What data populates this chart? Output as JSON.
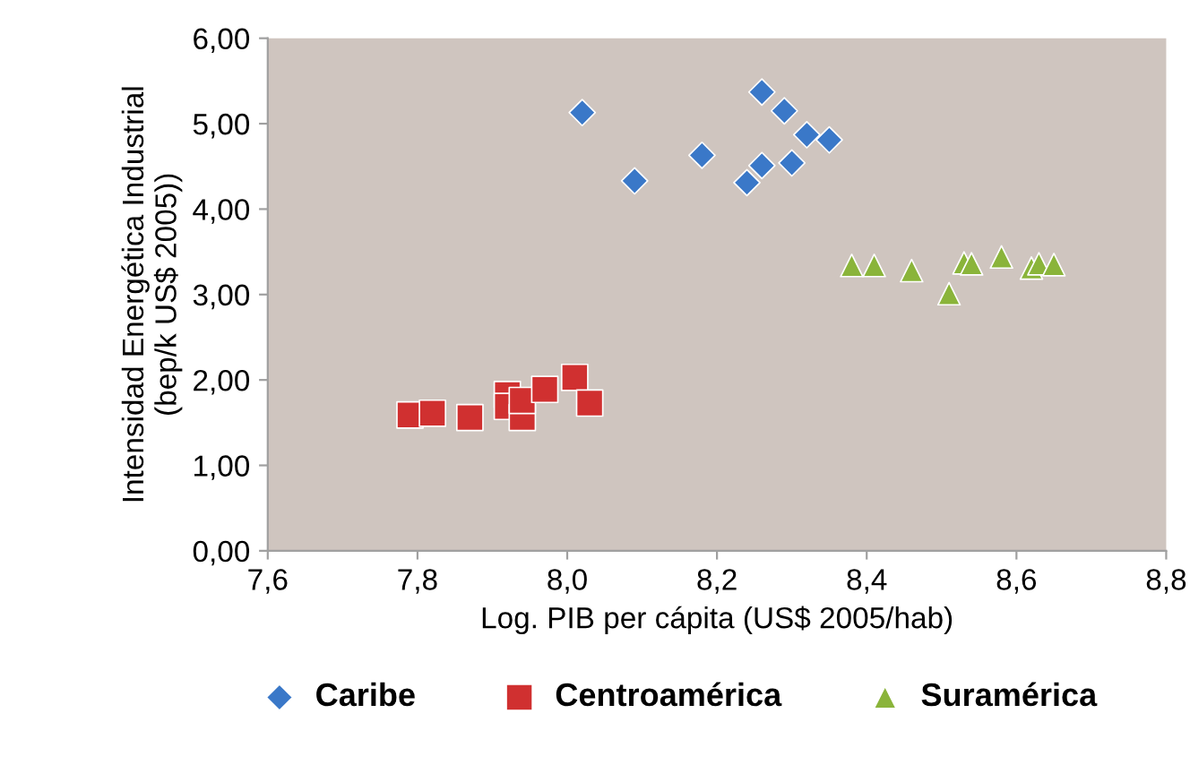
{
  "chart_data": {
    "type": "scatter",
    "xlabel": "Log. PIB per cápita (US$ 2005/hab)",
    "ylabel": "Intensidad Energética Industrial\n(bep/k US$ 2005))",
    "xlim": [
      7.6,
      8.8
    ],
    "ylim": [
      0,
      6
    ],
    "xticks": [
      {
        "value": 7.6,
        "label": "7,6"
      },
      {
        "value": 7.8,
        "label": "7,8"
      },
      {
        "value": 8.0,
        "label": "8,0"
      },
      {
        "value": 8.2,
        "label": "8,2"
      },
      {
        "value": 8.4,
        "label": "8,4"
      },
      {
        "value": 8.6,
        "label": "8,6"
      },
      {
        "value": 8.8,
        "label": "8,8"
      }
    ],
    "yticks": [
      {
        "value": 0,
        "label": "0,00"
      },
      {
        "value": 1,
        "label": "1,00"
      },
      {
        "value": 2,
        "label": "2,00"
      },
      {
        "value": 3,
        "label": "3,00"
      },
      {
        "value": 4,
        "label": "4,00"
      },
      {
        "value": 5,
        "label": "5,00"
      },
      {
        "value": 6,
        "label": "6,00"
      }
    ],
    "grid": false,
    "legend": "bottom",
    "series": [
      {
        "name": "Caribe",
        "color": "#3a78c8",
        "marker": "diamond",
        "x": [
          8.02,
          8.09,
          8.18,
          8.26,
          8.29,
          8.32,
          8.35,
          8.3,
          8.26,
          8.24
        ],
        "values": [
          5.13,
          4.33,
          4.63,
          5.37,
          5.15,
          4.87,
          4.81,
          4.54,
          4.51,
          4.31
        ]
      },
      {
        "name": "Centroamérica",
        "color": "#d03030",
        "marker": "square",
        "x": [
          7.79,
          7.82,
          7.87,
          7.92,
          7.92,
          7.94,
          7.94,
          7.97,
          8.01,
          8.03
        ],
        "values": [
          1.59,
          1.61,
          1.56,
          1.83,
          1.69,
          1.56,
          1.76,
          1.89,
          2.03,
          1.73
        ]
      },
      {
        "name": "Suramérica",
        "color": "#8ab43a",
        "marker": "triangle",
        "x": [
          8.38,
          8.41,
          8.46,
          8.51,
          8.53,
          8.54,
          8.58,
          8.62,
          8.63,
          8.65
        ],
        "values": [
          3.34,
          3.34,
          3.28,
          3.01,
          3.37,
          3.36,
          3.44,
          3.31,
          3.36,
          3.35
        ]
      }
    ]
  }
}
